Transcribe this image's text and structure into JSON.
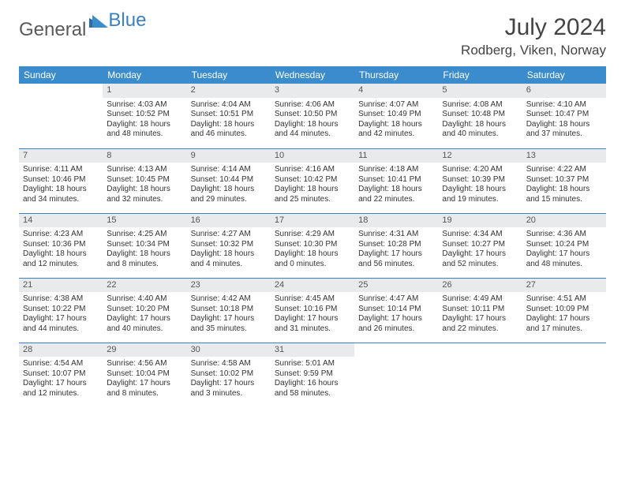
{
  "brand": {
    "part1": "General",
    "part2": "Blue"
  },
  "title": "July 2024",
  "location": "Rodberg, Viken, Norway",
  "weekdays": [
    "Sunday",
    "Monday",
    "Tuesday",
    "Wednesday",
    "Thursday",
    "Friday",
    "Saturday"
  ],
  "colors": {
    "header_bg": "#3b8ccc",
    "header_text": "#ffffff",
    "daynum_bg": "#e9eaeb",
    "row_border": "#3b7fc4",
    "brand_gray": "#5a5a5a",
    "brand_blue": "#3b7fc4"
  },
  "cells": [
    null,
    {
      "n": "1",
      "sr": "Sunrise: 4:03 AM",
      "ss": "Sunset: 10:52 PM",
      "dl": "Daylight: 18 hours and 48 minutes."
    },
    {
      "n": "2",
      "sr": "Sunrise: 4:04 AM",
      "ss": "Sunset: 10:51 PM",
      "dl": "Daylight: 18 hours and 46 minutes."
    },
    {
      "n": "3",
      "sr": "Sunrise: 4:06 AM",
      "ss": "Sunset: 10:50 PM",
      "dl": "Daylight: 18 hours and 44 minutes."
    },
    {
      "n": "4",
      "sr": "Sunrise: 4:07 AM",
      "ss": "Sunset: 10:49 PM",
      "dl": "Daylight: 18 hours and 42 minutes."
    },
    {
      "n": "5",
      "sr": "Sunrise: 4:08 AM",
      "ss": "Sunset: 10:48 PM",
      "dl": "Daylight: 18 hours and 40 minutes."
    },
    {
      "n": "6",
      "sr": "Sunrise: 4:10 AM",
      "ss": "Sunset: 10:47 PM",
      "dl": "Daylight: 18 hours and 37 minutes."
    },
    {
      "n": "7",
      "sr": "Sunrise: 4:11 AM",
      "ss": "Sunset: 10:46 PM",
      "dl": "Daylight: 18 hours and 34 minutes."
    },
    {
      "n": "8",
      "sr": "Sunrise: 4:13 AM",
      "ss": "Sunset: 10:45 PM",
      "dl": "Daylight: 18 hours and 32 minutes."
    },
    {
      "n": "9",
      "sr": "Sunrise: 4:14 AM",
      "ss": "Sunset: 10:44 PM",
      "dl": "Daylight: 18 hours and 29 minutes."
    },
    {
      "n": "10",
      "sr": "Sunrise: 4:16 AM",
      "ss": "Sunset: 10:42 PM",
      "dl": "Daylight: 18 hours and 25 minutes."
    },
    {
      "n": "11",
      "sr": "Sunrise: 4:18 AM",
      "ss": "Sunset: 10:41 PM",
      "dl": "Daylight: 18 hours and 22 minutes."
    },
    {
      "n": "12",
      "sr": "Sunrise: 4:20 AM",
      "ss": "Sunset: 10:39 PM",
      "dl": "Daylight: 18 hours and 19 minutes."
    },
    {
      "n": "13",
      "sr": "Sunrise: 4:22 AM",
      "ss": "Sunset: 10:37 PM",
      "dl": "Daylight: 18 hours and 15 minutes."
    },
    {
      "n": "14",
      "sr": "Sunrise: 4:23 AM",
      "ss": "Sunset: 10:36 PM",
      "dl": "Daylight: 18 hours and 12 minutes."
    },
    {
      "n": "15",
      "sr": "Sunrise: 4:25 AM",
      "ss": "Sunset: 10:34 PM",
      "dl": "Daylight: 18 hours and 8 minutes."
    },
    {
      "n": "16",
      "sr": "Sunrise: 4:27 AM",
      "ss": "Sunset: 10:32 PM",
      "dl": "Daylight: 18 hours and 4 minutes."
    },
    {
      "n": "17",
      "sr": "Sunrise: 4:29 AM",
      "ss": "Sunset: 10:30 PM",
      "dl": "Daylight: 18 hours and 0 minutes."
    },
    {
      "n": "18",
      "sr": "Sunrise: 4:31 AM",
      "ss": "Sunset: 10:28 PM",
      "dl": "Daylight: 17 hours and 56 minutes."
    },
    {
      "n": "19",
      "sr": "Sunrise: 4:34 AM",
      "ss": "Sunset: 10:27 PM",
      "dl": "Daylight: 17 hours and 52 minutes."
    },
    {
      "n": "20",
      "sr": "Sunrise: 4:36 AM",
      "ss": "Sunset: 10:24 PM",
      "dl": "Daylight: 17 hours and 48 minutes."
    },
    {
      "n": "21",
      "sr": "Sunrise: 4:38 AM",
      "ss": "Sunset: 10:22 PM",
      "dl": "Daylight: 17 hours and 44 minutes."
    },
    {
      "n": "22",
      "sr": "Sunrise: 4:40 AM",
      "ss": "Sunset: 10:20 PM",
      "dl": "Daylight: 17 hours and 40 minutes."
    },
    {
      "n": "23",
      "sr": "Sunrise: 4:42 AM",
      "ss": "Sunset: 10:18 PM",
      "dl": "Daylight: 17 hours and 35 minutes."
    },
    {
      "n": "24",
      "sr": "Sunrise: 4:45 AM",
      "ss": "Sunset: 10:16 PM",
      "dl": "Daylight: 17 hours and 31 minutes."
    },
    {
      "n": "25",
      "sr": "Sunrise: 4:47 AM",
      "ss": "Sunset: 10:14 PM",
      "dl": "Daylight: 17 hours and 26 minutes."
    },
    {
      "n": "26",
      "sr": "Sunrise: 4:49 AM",
      "ss": "Sunset: 10:11 PM",
      "dl": "Daylight: 17 hours and 22 minutes."
    },
    {
      "n": "27",
      "sr": "Sunrise: 4:51 AM",
      "ss": "Sunset: 10:09 PM",
      "dl": "Daylight: 17 hours and 17 minutes."
    },
    {
      "n": "28",
      "sr": "Sunrise: 4:54 AM",
      "ss": "Sunset: 10:07 PM",
      "dl": "Daylight: 17 hours and 12 minutes."
    },
    {
      "n": "29",
      "sr": "Sunrise: 4:56 AM",
      "ss": "Sunset: 10:04 PM",
      "dl": "Daylight: 17 hours and 8 minutes."
    },
    {
      "n": "30",
      "sr": "Sunrise: 4:58 AM",
      "ss": "Sunset: 10:02 PM",
      "dl": "Daylight: 17 hours and 3 minutes."
    },
    {
      "n": "31",
      "sr": "Sunrise: 5:01 AM",
      "ss": "Sunset: 9:59 PM",
      "dl": "Daylight: 16 hours and 58 minutes."
    },
    null,
    null,
    null
  ]
}
